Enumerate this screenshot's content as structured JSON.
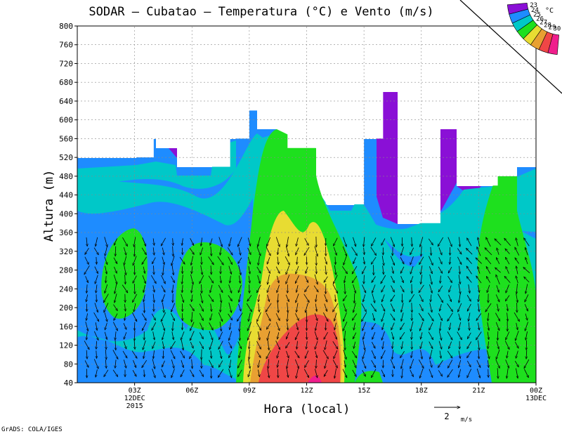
{
  "title": "SODAR – Cubatao – Temperatura (°C) e Vento (m/s)",
  "footer": "GrADS: COLA/IGES",
  "colors": {
    "t23": "#8a10d6",
    "t24": "#1e8cff",
    "t25": "#00c8c8",
    "t26": "#1ee01e",
    "t27": "#e8dc32",
    "t28": "#e8a032",
    "t29": "#f04646",
    "t30": "#f01e8c"
  },
  "chart_data": {
    "type": "heatmap",
    "description_variable": "Temperatura (°C) shaded; wind vectors (m/s)",
    "xlabel": "Hora (local)",
    "ylabel": "Altura (m)",
    "ylim": [
      40,
      800
    ],
    "yticks": [
      40,
      80,
      120,
      160,
      200,
      240,
      280,
      320,
      360,
      400,
      440,
      480,
      520,
      560,
      600,
      640,
      680,
      720,
      760,
      800
    ],
    "xlim_hours": [
      0,
      24
    ],
    "xticks": [
      {
        "h": 3,
        "label": "03Z",
        "sub1": "12DEC",
        "sub2": "2015"
      },
      {
        "h": 6,
        "label": "06Z"
      },
      {
        "h": 9,
        "label": "09Z"
      },
      {
        "h": 12,
        "label": "12Z"
      },
      {
        "h": 15,
        "label": "15Z"
      },
      {
        "h": 18,
        "label": "18Z"
      },
      {
        "h": 21,
        "label": "21Z"
      },
      {
        "h": 24,
        "label": "00Z",
        "sub1": "13DEC"
      }
    ],
    "colorbar": {
      "unit": "°C",
      "levels": [
        23,
        24,
        25,
        26,
        27,
        28,
        29,
        30
      ]
    },
    "wind_reference": {
      "value": 2,
      "unit": "m/s"
    },
    "data_top_height": [
      {
        "h": 0,
        "z": 520
      },
      {
        "h": 3,
        "z": 520
      },
      {
        "h": 4,
        "z": 560
      },
      {
        "h": 5,
        "z": 540
      },
      {
        "h": 6,
        "z": 500
      },
      {
        "h": 8,
        "z": 560
      },
      {
        "h": 9,
        "z": 620
      },
      {
        "h": 10,
        "z": 580
      },
      {
        "h": 11,
        "z": 540
      },
      {
        "h": 13,
        "z": 420
      },
      {
        "h": 14,
        "z": 420
      },
      {
        "h": 15,
        "z": 560
      },
      {
        "h": 16,
        "z": 660
      },
      {
        "h": 17,
        "z": 380
      },
      {
        "h": 18,
        "z": 380
      },
      {
        "h": 19,
        "z": 580
      },
      {
        "h": 20,
        "z": 460
      },
      {
        "h": 21,
        "z": 460
      },
      {
        "h": 22,
        "z": 480
      },
      {
        "h": 23,
        "z": 500
      },
      {
        "h": 24,
        "z": 500
      }
    ]
  }
}
